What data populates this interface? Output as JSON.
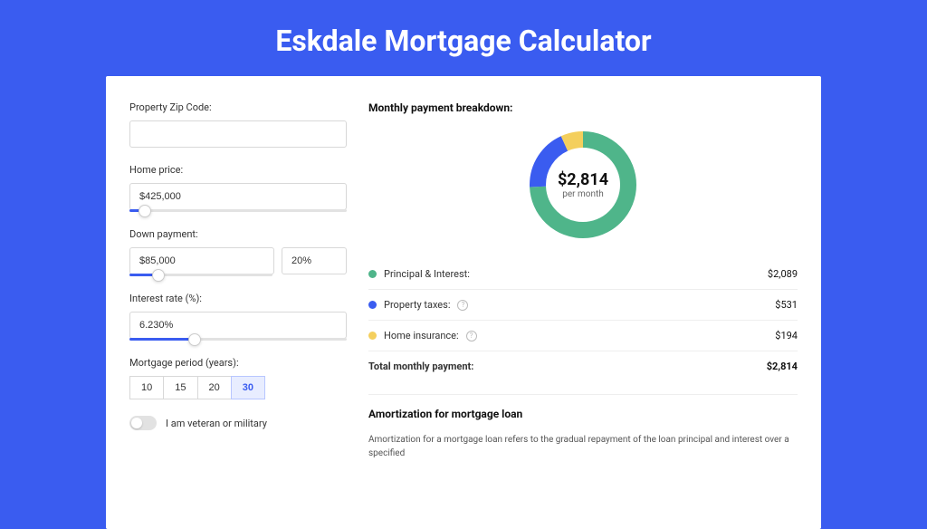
{
  "title": "Eskdale Mortgage Calculator",
  "colors": {
    "page_bg": "#3a5cf0",
    "card_bg": "#ffffff",
    "accent": "#3a5cf0",
    "text_primary": "#111111",
    "text_body": "#333333",
    "border": "#d8d8d8",
    "slider_track": "#e2e2e2"
  },
  "form": {
    "zip": {
      "label": "Property Zip Code:",
      "value": ""
    },
    "home_price": {
      "label": "Home price:",
      "value": "$425,000",
      "slider_pct": 7
    },
    "down_payment": {
      "label": "Down payment:",
      "amount": "$85,000",
      "pct": "20%",
      "slider_pct": 20
    },
    "interest_rate": {
      "label": "Interest rate (%):",
      "value": "6.230%",
      "slider_pct": 30
    },
    "mortgage_period": {
      "label": "Mortgage period (years):",
      "options": [
        "10",
        "15",
        "20",
        "30"
      ],
      "selected": "30"
    },
    "veteran": {
      "label": "I am veteran or military",
      "checked": false
    }
  },
  "breakdown": {
    "heading": "Monthly payment breakdown:",
    "center_amount": "$2,814",
    "center_sub": "per month",
    "donut": {
      "radius": 50,
      "stroke_width": 18,
      "background": "#ffffff",
      "slices": [
        {
          "label": "Principal & Interest:",
          "value": "$2,089",
          "color": "#4fb58a",
          "fraction": 0.742
        },
        {
          "label": "Property taxes:",
          "value": "$531",
          "color": "#3a5cf0",
          "fraction": 0.189,
          "info": true
        },
        {
          "label": "Home insurance:",
          "value": "$194",
          "color": "#f4cf5d",
          "fraction": 0.069,
          "info": true
        }
      ]
    },
    "total": {
      "label": "Total monthly payment:",
      "value": "$2,814"
    }
  },
  "amortization": {
    "heading": "Amortization for mortgage loan",
    "text": "Amortization for a mortgage loan refers to the gradual repayment of the loan principal and interest over a specified"
  }
}
